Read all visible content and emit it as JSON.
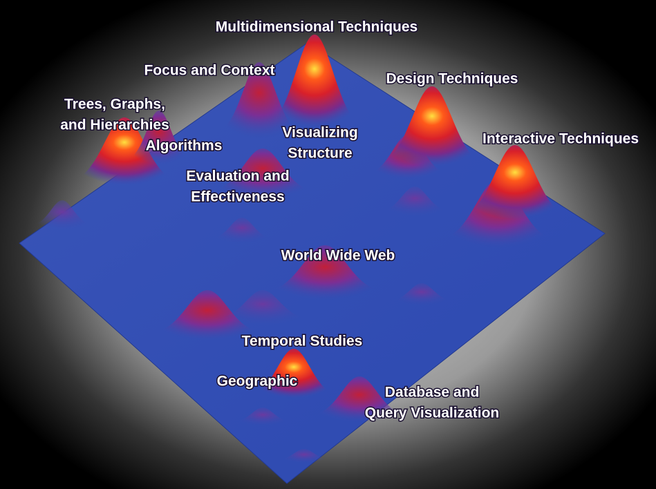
{
  "labels": [
    {
      "lines": [
        "Multidimensional Techniques"
      ]
    },
    {
      "lines": [
        "Focus and Context"
      ]
    },
    {
      "lines": [
        "Design Techniques"
      ]
    },
    {
      "lines": [
        "Trees, Graphs,",
        "and Hierarchies"
      ]
    },
    {
      "lines": [
        "Algorithms"
      ]
    },
    {
      "lines": [
        "Visualizing",
        "Structure"
      ]
    },
    {
      "lines": [
        "Interactive Techniques"
      ]
    },
    {
      "lines": [
        "Evaluation and",
        "Effectiveness"
      ]
    },
    {
      "lines": [
        "World Wide Web"
      ]
    },
    {
      "lines": [
        "Temporal Studies"
      ]
    },
    {
      "lines": [
        "Geographic"
      ]
    },
    {
      "lines": [
        "Database and",
        "Query Visualization"
      ]
    }
  ]
}
